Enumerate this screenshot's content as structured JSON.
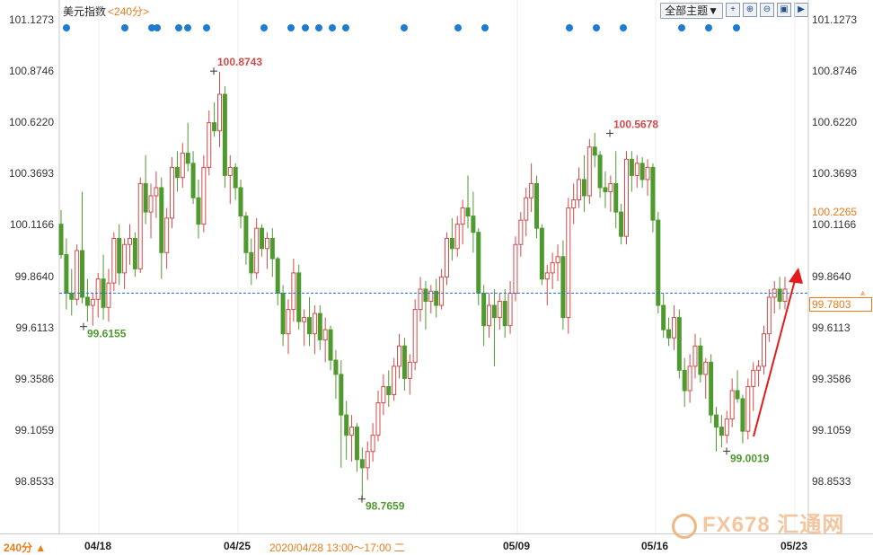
{
  "header": {
    "title": "美元指数",
    "period": "<240分>",
    "theme_button": "全部主题▼",
    "tool_icons": [
      "crosshair-icon",
      "zoom-in-icon",
      "zoom-out-icon",
      "restore-icon",
      "next-icon"
    ]
  },
  "footer": {
    "period_label": "240分 ▲",
    "cursor_time": "2020/04/28 13:00～17:00 二"
  },
  "current_price": "99.7803",
  "hover_price": "100.2265",
  "watermark": "FX678 汇通网",
  "colors": {
    "up": "#d24a4a",
    "down": "#4e9a2e",
    "marker": "#1f7bd1",
    "guide": "#1f6fd1",
    "arrow": "#e31b1b",
    "accent": "#e87d1a"
  },
  "chart_data": {
    "type": "candlestick",
    "title": "美元指数",
    "y_ticks": [
      "101.1273",
      "100.8746",
      "100.6220",
      "100.3693",
      "100.1166",
      "99.8640",
      "99.6113",
      "99.3586",
      "99.1059",
      "98.8533"
    ],
    "x_ticks": [
      "04/18",
      "04/25",
      "05/09",
      "05/16",
      "05/23"
    ],
    "ylim": [
      98.76,
      101.16
    ],
    "annotations": [
      {
        "label": "100.8743",
        "kind": "high"
      },
      {
        "label": "100.5678",
        "kind": "high"
      },
      {
        "label": "99.6155",
        "kind": "low"
      },
      {
        "label": "98.7659",
        "kind": "low"
      },
      {
        "label": "99.0019",
        "kind": "low"
      }
    ],
    "series": [
      {
        "ohlc": [
          [
            100.12,
            100.19,
            99.95,
            99.97
          ],
          [
            99.97,
            100.05,
            99.7,
            99.78
          ],
          [
            99.78,
            99.9,
            99.67,
            99.75
          ],
          [
            99.75,
            100.02,
            99.72,
            99.99
          ],
          [
            99.99,
            100.28,
            99.73,
            99.76
          ],
          [
            99.76,
            99.85,
            99.64,
            99.72
          ],
          [
            99.72,
            99.78,
            99.62,
            99.75
          ],
          [
            99.75,
            99.88,
            99.66,
            99.85
          ],
          [
            99.85,
            99.97,
            99.65,
            99.71
          ],
          [
            99.71,
            99.9,
            99.64,
            99.83
          ],
          [
            99.83,
            100.08,
            99.79,
            100.05
          ],
          [
            100.05,
            100.12,
            99.82,
            99.88
          ],
          [
            99.88,
            100.05,
            99.8,
            100.02
          ],
          [
            100.02,
            100.12,
            99.92,
            100.05
          ],
          [
            100.05,
            100.08,
            99.86,
            99.9
          ],
          [
            99.9,
            100.35,
            99.88,
            100.32
          ],
          [
            100.32,
            100.46,
            100.12,
            100.18
          ],
          [
            100.18,
            100.32,
            100.05,
            100.26
          ],
          [
            100.26,
            100.38,
            100.15,
            100.3
          ],
          [
            100.3,
            100.35,
            99.85,
            99.98
          ],
          [
            99.98,
            100.2,
            99.9,
            100.15
          ],
          [
            100.15,
            100.45,
            100.1,
            100.4
          ],
          [
            100.4,
            100.48,
            100.28,
            100.35
          ],
          [
            100.35,
            100.52,
            100.3,
            100.47
          ],
          [
            100.47,
            100.62,
            100.38,
            100.42
          ],
          [
            100.42,
            100.48,
            100.22,
            100.25
          ],
          [
            100.25,
            100.34,
            100.05,
            100.12
          ],
          [
            100.12,
            100.46,
            100.08,
            100.4
          ],
          [
            100.4,
            100.68,
            100.36,
            100.62
          ],
          [
            100.62,
            100.72,
            100.55,
            100.58
          ],
          [
            100.58,
            100.87,
            100.5,
            100.76
          ],
          [
            100.76,
            100.8,
            100.3,
            100.36
          ],
          [
            100.36,
            100.46,
            100.22,
            100.4
          ],
          [
            100.4,
            100.42,
            100.24,
            100.3
          ],
          [
            100.3,
            100.34,
            100.1,
            100.16
          ],
          [
            100.16,
            100.18,
            99.92,
            99.98
          ],
          [
            99.98,
            100.05,
            99.82,
            99.88
          ],
          [
            99.88,
            100.15,
            99.85,
            100.1
          ],
          [
            100.1,
            100.12,
            99.96,
            100.0
          ],
          [
            100.0,
            100.08,
            99.9,
            100.05
          ],
          [
            100.05,
            100.1,
            99.86,
            99.95
          ],
          [
            99.95,
            99.96,
            99.72,
            99.78
          ],
          [
            99.78,
            99.82,
            99.52,
            99.58
          ],
          [
            99.58,
            99.75,
            99.48,
            99.7
          ],
          [
            99.7,
            99.95,
            99.64,
            99.88
          ],
          [
            99.88,
            99.92,
            99.6,
            99.64
          ],
          [
            99.64,
            99.7,
            99.52,
            99.66
          ],
          [
            99.66,
            99.76,
            99.52,
            99.58
          ],
          [
            99.58,
            99.72,
            99.48,
            99.68
          ],
          [
            99.68,
            99.72,
            99.5,
            99.55
          ],
          [
            99.55,
            99.66,
            99.44,
            99.6
          ],
          [
            99.6,
            99.62,
            99.4,
            99.45
          ],
          [
            99.45,
            99.5,
            99.26,
            99.38
          ],
          [
            99.38,
            99.45,
            98.92,
            99.18
          ],
          [
            99.18,
            99.25,
            98.96,
            99.08
          ],
          [
            99.08,
            99.18,
            98.95,
            99.12
          ],
          [
            99.12,
            99.14,
            98.9,
            98.96
          ],
          [
            98.96,
            99.02,
            98.77,
            98.92
          ],
          [
            98.92,
            99.05,
            98.86,
            99.0
          ],
          [
            99.0,
            99.14,
            98.95,
            99.08
          ],
          [
            99.08,
            99.3,
            99.05,
            99.24
          ],
          [
            99.24,
            99.38,
            99.18,
            99.32
          ],
          [
            99.32,
            99.4,
            99.22,
            99.28
          ],
          [
            99.28,
            99.46,
            99.25,
            99.42
          ],
          [
            99.42,
            99.58,
            99.36,
            99.52
          ],
          [
            99.52,
            99.56,
            99.3,
            99.36
          ],
          [
            99.36,
            99.48,
            99.28,
            99.44
          ],
          [
            99.44,
            99.75,
            99.4,
            99.7
          ],
          [
            99.7,
            99.86,
            99.64,
            99.8
          ],
          [
            99.8,
            99.84,
            99.6,
            99.74
          ],
          [
            99.74,
            99.82,
            99.68,
            99.79
          ],
          [
            99.79,
            99.85,
            99.66,
            99.72
          ],
          [
            99.72,
            99.9,
            99.7,
            99.86
          ],
          [
            99.86,
            100.08,
            99.82,
            100.05
          ],
          [
            100.05,
            100.15,
            99.94,
            100.0
          ],
          [
            100.0,
            100.16,
            99.96,
            100.12
          ],
          [
            100.12,
            100.24,
            100.02,
            100.2
          ],
          [
            100.2,
            100.36,
            100.1,
            100.16
          ],
          [
            100.16,
            100.28,
            99.98,
            100.08
          ],
          [
            100.08,
            100.1,
            99.72,
            99.78
          ],
          [
            99.78,
            99.82,
            99.52,
            99.62
          ],
          [
            99.62,
            99.78,
            99.56,
            99.72
          ],
          [
            99.72,
            99.8,
            99.42,
            99.66
          ],
          [
            99.66,
            99.78,
            99.6,
            99.74
          ],
          [
            99.74,
            99.8,
            99.56,
            99.62
          ],
          [
            99.62,
            99.84,
            99.58,
            99.78
          ],
          [
            99.78,
            100.06,
            99.74,
            100.02
          ],
          [
            100.02,
            100.18,
            99.96,
            100.14
          ],
          [
            100.14,
            100.3,
            100.06,
            100.25
          ],
          [
            100.25,
            100.42,
            100.18,
            100.32
          ],
          [
            100.32,
            100.36,
            100.05,
            100.1
          ],
          [
            100.1,
            100.12,
            99.82,
            99.85
          ],
          [
            99.85,
            99.92,
            99.72,
            99.88
          ],
          [
            99.88,
            99.98,
            99.8,
            99.93
          ],
          [
            99.93,
            100.02,
            99.84,
            99.96
          ],
          [
            99.96,
            100.04,
            99.6,
            99.66
          ],
          [
            99.66,
            100.25,
            99.58,
            100.2
          ],
          [
            100.2,
            100.32,
            100.12,
            100.24
          ],
          [
            100.24,
            100.4,
            100.2,
            100.34
          ],
          [
            100.34,
            100.46,
            100.18,
            100.26
          ],
          [
            100.26,
            100.54,
            100.22,
            100.5
          ],
          [
            100.5,
            100.57,
            100.4,
            100.46
          ],
          [
            100.46,
            100.48,
            100.25,
            100.3
          ],
          [
            100.3,
            100.38,
            100.2,
            100.28
          ],
          [
            100.28,
            100.36,
            100.18,
            100.32
          ],
          [
            100.32,
            100.48,
            100.1,
            100.18
          ],
          [
            100.18,
            100.22,
            100.02,
            100.06
          ],
          [
            100.06,
            100.48,
            100.02,
            100.44
          ],
          [
            100.44,
            100.48,
            100.28,
            100.36
          ],
          [
            100.36,
            100.46,
            100.3,
            100.42
          ],
          [
            100.42,
            100.45,
            100.3,
            100.34
          ],
          [
            100.34,
            100.44,
            100.26,
            100.4
          ],
          [
            100.4,
            100.42,
            100.08,
            100.14
          ],
          [
            100.14,
            100.18,
            99.68,
            99.72
          ],
          [
            99.72,
            99.78,
            99.56,
            99.6
          ],
          [
            99.6,
            99.66,
            99.52,
            99.56
          ],
          [
            99.56,
            99.72,
            99.5,
            99.66
          ],
          [
            99.66,
            99.7,
            99.36,
            99.4
          ],
          [
            99.4,
            99.46,
            99.22,
            99.3
          ],
          [
            99.3,
            99.48,
            99.24,
            99.42
          ],
          [
            99.42,
            99.58,
            99.36,
            99.52
          ],
          [
            99.52,
            99.56,
            99.34,
            99.38
          ],
          [
            99.38,
            99.46,
            99.26,
            99.44
          ],
          [
            99.44,
            99.48,
            99.14,
            99.18
          ],
          [
            99.18,
            99.22,
            99.0,
            99.12
          ],
          [
            99.12,
            99.18,
            99.02,
            99.08
          ],
          [
            99.08,
            99.2,
            99.04,
            99.16
          ],
          [
            99.16,
            99.36,
            99.12,
            99.3
          ],
          [
            99.3,
            99.4,
            99.24,
            99.26
          ],
          [
            99.26,
            99.28,
            99.04,
            99.1
          ],
          [
            99.1,
            99.36,
            99.06,
            99.32
          ],
          [
            99.32,
            99.44,
            99.2,
            99.4
          ],
          [
            99.4,
            99.45,
            99.32,
            99.42
          ],
          [
            99.42,
            99.62,
            99.38,
            99.58
          ],
          [
            99.58,
            99.8,
            99.54,
            99.76
          ],
          [
            99.76,
            99.84,
            99.68,
            99.8
          ],
          [
            99.8,
            99.86,
            99.7,
            99.74
          ],
          [
            99.74,
            99.86,
            99.7,
            99.8
          ]
        ]
      }
    ]
  }
}
